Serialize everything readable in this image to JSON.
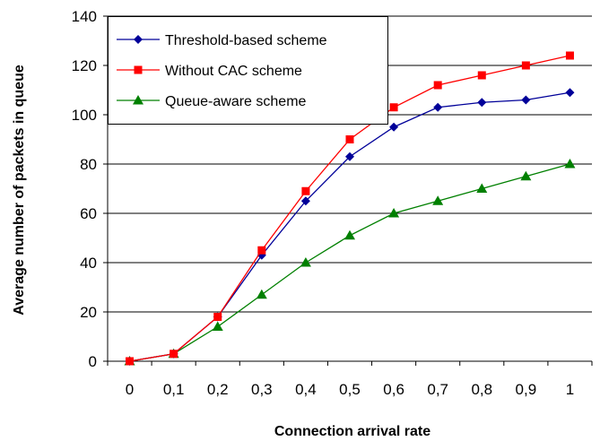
{
  "chart_data": {
    "type": "line",
    "xlabel": "Connection arrival rate",
    "ylabel": "Average number of packets in queue",
    "x": [
      "0",
      "0,1",
      "0,2",
      "0,3",
      "0,4",
      "0,5",
      "0,6",
      "0,7",
      "0,8",
      "0,9",
      "1"
    ],
    "ylim": [
      0,
      140
    ],
    "yticks": [
      0,
      20,
      40,
      60,
      80,
      100,
      120,
      140
    ],
    "grid": "horizontal",
    "legend_position": "top-left",
    "series": [
      {
        "name": "Threshold-based scheme",
        "color": "#000099",
        "marker": "diamond",
        "values": [
          0,
          3,
          18,
          43,
          65,
          83,
          95,
          103,
          105,
          106,
          109
        ]
      },
      {
        "name": "Without CAC scheme",
        "color": "#ff0000",
        "marker": "square",
        "values": [
          0,
          3,
          18,
          45,
          69,
          90,
          103,
          112,
          116,
          120,
          124
        ]
      },
      {
        "name": "Queue-aware scheme",
        "color": "#008000",
        "marker": "triangle",
        "values": [
          0,
          3,
          14,
          27,
          40,
          51,
          60,
          65,
          70,
          75,
          80
        ]
      }
    ]
  }
}
